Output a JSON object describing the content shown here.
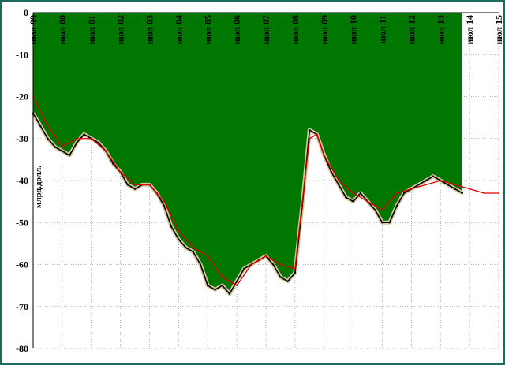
{
  "chart_data": {
    "type": "area",
    "title": "",
    "ylabel": "млрд.долл.",
    "xlabel": "",
    "ylim": [
      -80,
      0
    ],
    "y_ticks": [
      0,
      -10,
      -20,
      -30,
      -40,
      -50,
      -60,
      -70,
      -80
    ],
    "y_tick_labels": [
      "0",
      "-10",
      "-20",
      "-30",
      "-40",
      "-50",
      "-60",
      "-70",
      "-80"
    ],
    "x_start": 1999.5,
    "x_end": 2015.5,
    "x_ticks": [
      1999.5,
      2000.5,
      2001.5,
      2002.5,
      2003.5,
      2004.5,
      2005.5,
      2006.5,
      2007.5,
      2008.5,
      2009.5,
      2010.5,
      2011.5,
      2012.5,
      2013.5,
      2014.5,
      2015.5
    ],
    "x_tick_labels": [
      "июл 99",
      "июл 00",
      "июл 01",
      "июл 02",
      "июл 03",
      "июл 04",
      "июл 05",
      "июл 06",
      "июл 07",
      "июл 08",
      "июл 09",
      "июл 10",
      "июл 11",
      "июл 12",
      "июл 13",
      "июл 14",
      "июл 15"
    ],
    "grid": true,
    "colors": {
      "area": "#007700",
      "trend": "#dd0000",
      "band": "#d8c8a0",
      "frame": "#1d6b5c"
    },
    "series": [
      {
        "type": "area",
        "x": [
          1999.5,
          1999.75,
          2000.0,
          2000.25,
          2000.5,
          2000.75,
          2001.0,
          2001.25,
          2001.5,
          2001.75,
          2002.0,
          2002.25,
          2002.5,
          2002.75,
          2003.0,
          2003.25,
          2003.5,
          2003.75,
          2004.0,
          2004.25,
          2004.5,
          2004.75,
          2005.0,
          2005.25,
          2005.5,
          2005.75,
          2006.0,
          2006.25,
          2006.5,
          2006.75,
          2007.0,
          2007.25,
          2007.5,
          2007.75,
          2008.0,
          2008.25,
          2008.5,
          2008.75,
          2009.0,
          2009.25,
          2009.5,
          2009.75,
          2010.0,
          2010.25,
          2010.5,
          2010.75,
          2011.0,
          2011.25,
          2011.5,
          2011.75,
          2012.0,
          2012.25,
          2012.5,
          2012.75,
          2013.0,
          2013.25,
          2013.5,
          2013.75,
          2014.0,
          2014.25
        ],
        "values": [
          -24,
          -27,
          -30,
          -32,
          -33,
          -34,
          -31,
          -29,
          -30,
          -31,
          -33,
          -36,
          -38,
          -41,
          -42,
          -41,
          -41,
          -43,
          -46,
          -51,
          -54,
          -56,
          -57,
          -60,
          -65,
          -66,
          -65,
          -67,
          -64,
          -61,
          -60,
          -59,
          -58,
          -60,
          -63,
          -64,
          -62,
          -46,
          -28,
          -29,
          -34,
          -38,
          -41,
          -44,
          -45,
          -43,
          -45,
          -47,
          -50,
          -50,
          -46,
          -43,
          -42,
          -41,
          -40,
          -39,
          -40,
          -41,
          -42,
          -43
        ]
      },
      {
        "type": "line",
        "x": [
          1999.5,
          2000.0,
          2000.5,
          2001.0,
          2001.5,
          2002.0,
          2002.5,
          2003.0,
          2003.5,
          2004.0,
          2004.5,
          2005.0,
          2005.5,
          2006.0,
          2006.5,
          2007.0,
          2007.5,
          2008.0,
          2008.5,
          2008.75,
          2009.0,
          2009.25,
          2009.5,
          2010.0,
          2010.5,
          2011.0,
          2011.5,
          2012.0,
          2012.5,
          2013.0,
          2013.5,
          2014.0,
          2014.5,
          2015.0,
          2015.5
        ],
        "values": [
          -20,
          -27,
          -32,
          -30,
          -30,
          -33,
          -38,
          -41,
          -41,
          -45,
          -52,
          -56,
          -58,
          -63,
          -65,
          -60,
          -58,
          -60,
          -61,
          -45,
          -30,
          -29,
          -34,
          -40,
          -43,
          -45,
          -47,
          -43,
          -42,
          -41,
          -40,
          -41,
          -42,
          -43,
          -43
        ]
      }
    ]
  }
}
